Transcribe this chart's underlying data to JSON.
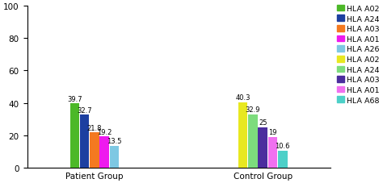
{
  "groups": [
    "Patient Group",
    "Control Group"
  ],
  "patient_values": [
    39.7,
    32.7,
    21.8,
    19.2,
    13.5
  ],
  "control_values": [
    40.3,
    32.9,
    25,
    19,
    10.6
  ],
  "patient_colors": [
    "#4cb828",
    "#1c3fa0",
    "#f47920",
    "#ee1aee",
    "#7ec8e3"
  ],
  "control_colors": [
    "#e8e820",
    "#7ddc7d",
    "#4b2d9e",
    "#f070f0",
    "#4dd0c8"
  ],
  "patient_labels": [
    "HLA A02",
    "HLA A24",
    "HLA A03",
    "HLA A01",
    "HLA A26"
  ],
  "control_labels": [
    "HLA A02",
    "HLA A24",
    "HLA A03",
    "HLA A01",
    "HLA A68"
  ],
  "patient_values_labels": [
    "39.7",
    "32.7",
    "21.8",
    "19.2",
    "13.5"
  ],
  "control_values_labels": [
    "40.3",
    "32.9",
    "25",
    "19",
    "10.6"
  ],
  "ylim": [
    0,
    100
  ],
  "yticks": [
    0,
    20,
    40,
    60,
    80,
    100
  ],
  "bar_width": 0.055,
  "label_fontsize": 6.0,
  "tick_fontsize": 7.5,
  "legend_fontsize": 6.8,
  "background_color": "#ffffff"
}
